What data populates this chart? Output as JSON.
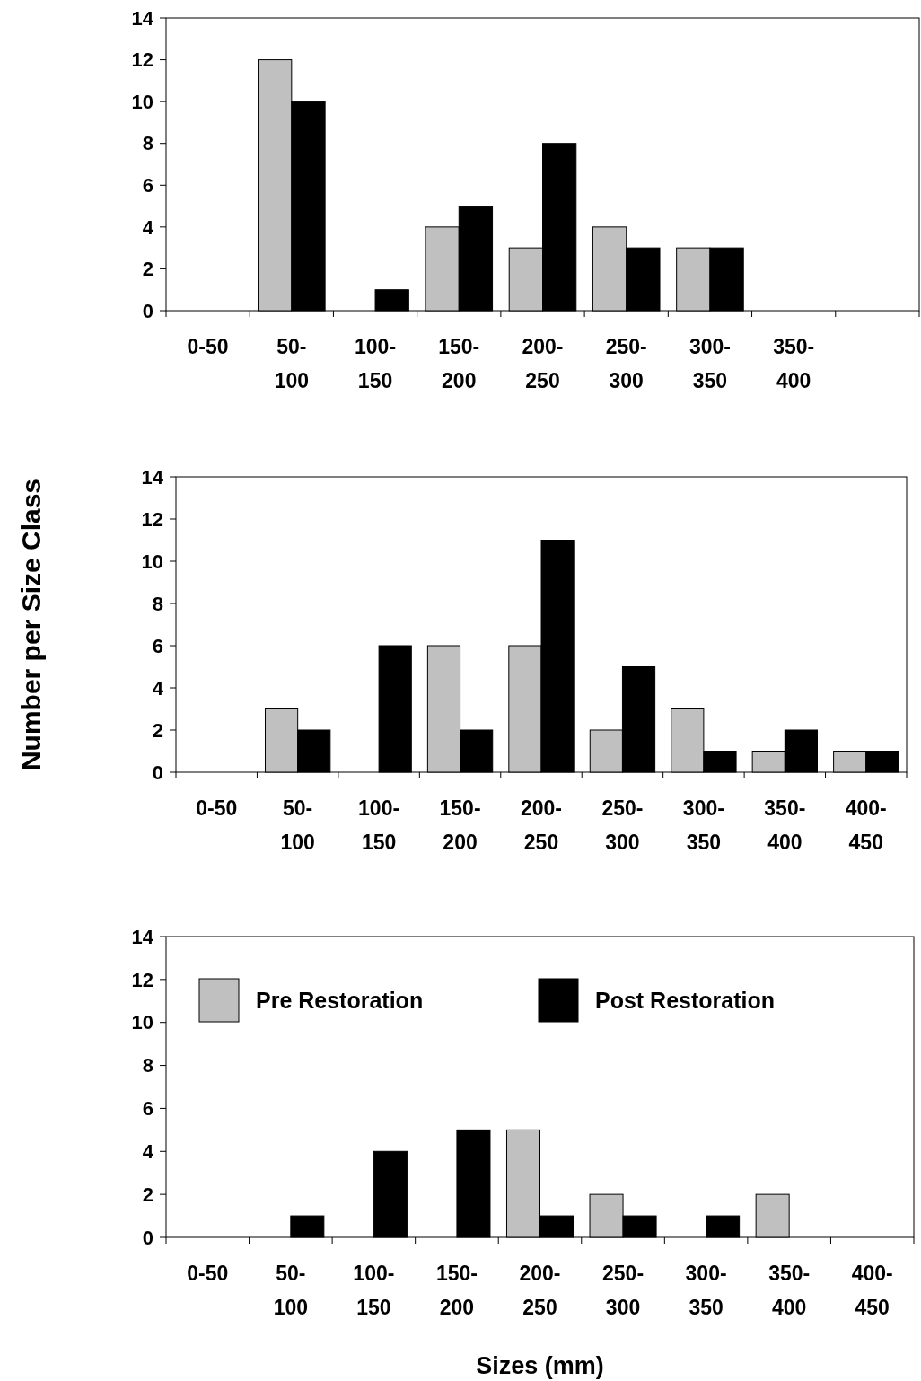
{
  "chart_data": [
    {
      "type": "bar",
      "categories": [
        "0-50",
        "50-100",
        "100-150",
        "150-200",
        "200-250",
        "250-300",
        "300-350",
        "350-400",
        null
      ],
      "series": [
        {
          "color": "#c0c0c0",
          "values": [
            0,
            12,
            0,
            4,
            3,
            4,
            3,
            0,
            0
          ]
        },
        {
          "color": "#000000",
          "values": [
            0,
            10,
            1,
            5,
            8,
            3,
            3,
            0,
            0
          ]
        }
      ],
      "ylim": [
        0,
        14
      ],
      "yticks": [
        0,
        2,
        4,
        6,
        8,
        10,
        12,
        14
      ],
      "grid": false,
      "legend": false
    },
    {
      "type": "bar",
      "ylabel": "Number per Size Class",
      "categories": [
        "0-50",
        "50-100",
        "100-150",
        "150-200",
        "200-250",
        "250-300",
        "300-350",
        "350-400",
        "400-450"
      ],
      "series": [
        {
          "color": "#c0c0c0",
          "values": [
            0,
            3,
            0,
            6,
            6,
            2,
            3,
            1,
            1
          ]
        },
        {
          "color": "#000000",
          "values": [
            0,
            2,
            6,
            2,
            11,
            5,
            1,
            2,
            1
          ]
        }
      ],
      "ylim": [
        0,
        14
      ],
      "yticks": [
        0,
        2,
        4,
        6,
        8,
        10,
        12,
        14
      ],
      "grid": false,
      "legend": false
    },
    {
      "type": "bar",
      "xlabel": "Sizes (mm)",
      "categories": [
        "0-50",
        "50-100",
        "100-150",
        "150-200",
        "200-250",
        "250-300",
        "300-350",
        "350-400",
        "400-450"
      ],
      "series": [
        {
          "name": "Pre Restoration",
          "color": "#c0c0c0",
          "values": [
            0,
            0,
            0,
            0,
            5,
            2,
            0,
            2,
            0
          ]
        },
        {
          "name": "Post Restoration",
          "color": "#000000",
          "values": [
            0,
            1,
            4,
            5,
            1,
            1,
            1,
            0,
            0
          ]
        }
      ],
      "ylim": [
        0,
        14
      ],
      "yticks": [
        0,
        2,
        4,
        6,
        8,
        10,
        12,
        14
      ],
      "grid": false,
      "legend": "top"
    }
  ]
}
